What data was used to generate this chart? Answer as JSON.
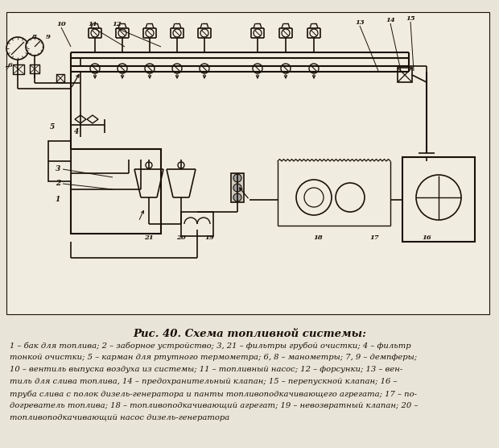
{
  "title": "Рис. 40. Схема топливной системы:",
  "caption_lines": [
    "1 – бак для топлива; 2 – заборное устройство; 3, 21 – фильтры грубой очистки; 4 – фильтр",
    "тонкой очистки; 5 – карман для ртутного термометра; 6, 8 – манометры; 7, 9 – демпферы;",
    "10 – вентиль выпуска воздуха из системы; 11 – топливный насос; 12 – форсунки; 13 – вен-",
    "тиль для слива топлива, 14 – предохранительный клапан; 15 – перепускной клапан; 16 –",
    "труба слива с полок дизель-генератора и панты топливоподкачивающего агрегата; 17 – по-",
    "догреватель топлива; 18 – топливоподкачивающий агрегат; 19 – невозвратный клапан; 20 –",
    "топливоподкачивающий насос дизель-генератора"
  ],
  "bg_color": "#e8e4d8",
  "line_color": "#1a1008",
  "title_fontsize": 9.5,
  "caption_fontsize": 7.2,
  "fig_width": 6.2,
  "fig_height": 5.56,
  "dpi": 100
}
